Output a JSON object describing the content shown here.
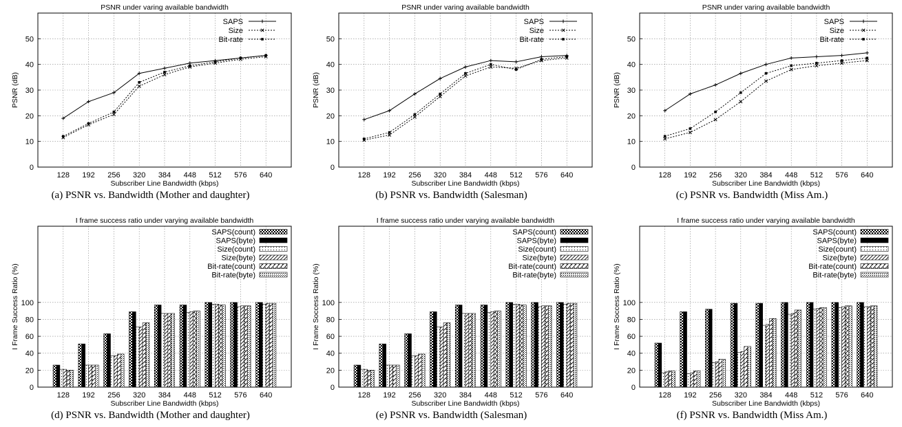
{
  "charts": [
    {
      "type": "line",
      "title": "PSNR under varing available bandwidth",
      "xlabel": "Subscriber Line Bandwidth (kbps)",
      "ylabel": "PSNR (dB)",
      "caption": "(a) PSNR vs. Bandwidth (Mother and daughter)",
      "categories": [
        "128",
        "192",
        "256",
        "320",
        "384",
        "448",
        "512",
        "576",
        "640"
      ],
      "yticks": [
        0,
        10,
        20,
        30,
        40,
        50
      ],
      "ylim": [
        0,
        60
      ],
      "legend_position": "top-right",
      "series": [
        {
          "name": "SAPS",
          "style": "solid",
          "marker": "plus",
          "values": [
            19,
            25.5,
            29,
            36.5,
            38.5,
            40.5,
            41.5,
            42.5,
            43.5
          ]
        },
        {
          "name": "Size",
          "style": "dotted",
          "marker": "x",
          "values": [
            11.5,
            16.5,
            20.5,
            31.5,
            36,
            39,
            40.5,
            42,
            43
          ]
        },
        {
          "name": "Bit-rate",
          "style": "dotted",
          "marker": "square",
          "values": [
            12,
            17,
            21.5,
            33,
            37,
            39.5,
            41,
            42.5,
            43.5
          ]
        }
      ]
    },
    {
      "type": "line",
      "title": "PSNR under varing available bandwidth",
      "xlabel": "Subscriber Line Bandwidth (kbps)",
      "ylabel": "PSNR (dB)",
      "caption": "(b) PSNR vs. Bandwidth (Salesman)",
      "categories": [
        "128",
        "192",
        "256",
        "320",
        "384",
        "448",
        "512",
        "576",
        "640"
      ],
      "yticks": [
        0,
        10,
        20,
        30,
        40,
        50
      ],
      "ylim": [
        0,
        60
      ],
      "legend_position": "top-right",
      "series": [
        {
          "name": "SAPS",
          "style": "solid",
          "marker": "plus",
          "values": [
            18.5,
            22,
            28.5,
            34.5,
            39,
            41.5,
            41,
            43,
            43.5
          ]
        },
        {
          "name": "Size",
          "style": "dotted",
          "marker": "x",
          "values": [
            10.5,
            12.5,
            19.5,
            27.5,
            35.5,
            39,
            38.5,
            41.5,
            42.5
          ]
        },
        {
          "name": "Bit-rate",
          "style": "dotted",
          "marker": "square",
          "values": [
            11,
            13.5,
            20.5,
            28.5,
            36.5,
            40,
            38,
            42,
            43
          ]
        }
      ]
    },
    {
      "type": "line",
      "title": "PSNR under varing available bandwidth",
      "xlabel": "Subscriber Line Bandwidth (kbps)",
      "ylabel": "PSNR (dB)",
      "caption": "(c) PSNR vs. Bandwidth (Miss Am.)",
      "categories": [
        "128",
        "192",
        "256",
        "320",
        "384",
        "448",
        "512",
        "576",
        "640"
      ],
      "yticks": [
        0,
        10,
        20,
        30,
        40,
        50
      ],
      "ylim": [
        0,
        60
      ],
      "legend_position": "top-right",
      "series": [
        {
          "name": "SAPS",
          "style": "solid",
          "marker": "plus",
          "values": [
            22,
            28.5,
            32,
            36.5,
            40,
            42.5,
            43,
            43.5,
            44.5
          ]
        },
        {
          "name": "Size",
          "style": "dotted",
          "marker": "x",
          "values": [
            11,
            13.5,
            18.5,
            25.5,
            33.5,
            38,
            39.5,
            40.5,
            41.5
          ]
        },
        {
          "name": "Bit-rate",
          "style": "dotted",
          "marker": "square",
          "values": [
            12,
            15,
            21.5,
            29,
            36.5,
            39.5,
            40.5,
            41.5,
            42.5
          ]
        }
      ]
    },
    {
      "type": "bar",
      "title": "I frame success ratio under varying available bandwidth",
      "xlabel": "Subscriber Line Bandwidth (kbps)",
      "ylabel": "I Frame Success Ratio (%)",
      "caption": "(d) PSNR vs. Bandwidth (Mother and daughter)",
      "categories": [
        "128",
        "192",
        "256",
        "320",
        "384",
        "448",
        "512",
        "576",
        "640"
      ],
      "yticks": [
        0,
        20,
        40,
        60,
        80,
        100
      ],
      "ylim": [
        0,
        190
      ],
      "legend_position": "top-right",
      "series": [
        {
          "name": "SAPS(count)",
          "pattern": "checker",
          "values": [
            26,
            51,
            63,
            89,
            97,
            97,
            100,
            100,
            100
          ]
        },
        {
          "name": "SAPS(byte)",
          "pattern": "solid",
          "values": [
            26,
            51,
            63,
            89,
            97,
            97,
            100,
            100,
            100
          ]
        },
        {
          "name": "Size(count)",
          "pattern": "dots",
          "values": [
            21,
            26,
            37,
            71,
            87,
            88,
            98,
            95,
            98
          ]
        },
        {
          "name": "Size(byte)",
          "pattern": "diag",
          "values": [
            21,
            26,
            37,
            71,
            87,
            89,
            98,
            96,
            99
          ]
        },
        {
          "name": "Bit-rate(count)",
          "pattern": "zigzag",
          "values": [
            20,
            26,
            39,
            76,
            87,
            90,
            97,
            96,
            99
          ]
        },
        {
          "name": "Bit-rate(byte)",
          "pattern": "fine",
          "values": [
            20,
            26,
            39,
            76,
            87,
            90,
            97,
            96,
            99
          ]
        }
      ]
    },
    {
      "type": "bar",
      "title": "I frame success ratio under varying available bandwidth",
      "xlabel": "Subscriber Line Bandwidth (kbps)",
      "ylabel": "I Frame Soccess Ratio (%)",
      "caption": "(e) PSNR vs. Bandwidth (Salesman)",
      "categories": [
        "128",
        "192",
        "256",
        "320",
        "384",
        "448",
        "512",
        "576",
        "640"
      ],
      "yticks": [
        0,
        20,
        40,
        60,
        80,
        100
      ],
      "ylim": [
        0,
        190
      ],
      "legend_position": "top-right",
      "series": [
        {
          "name": "SAPS(count)",
          "pattern": "checker",
          "values": [
            26,
            51,
            63,
            89,
            97,
            97,
            100,
            100,
            100
          ]
        },
        {
          "name": "SAPS(byte)",
          "pattern": "solid",
          "values": [
            26,
            51,
            63,
            89,
            97,
            97,
            100,
            100,
            100
          ]
        },
        {
          "name": "Size(count)",
          "pattern": "dots",
          "values": [
            21,
            26,
            37,
            71,
            87,
            88,
            98,
            95,
            98
          ]
        },
        {
          "name": "Size(byte)",
          "pattern": "diag",
          "values": [
            21,
            26,
            37,
            71,
            87,
            89,
            98,
            96,
            99
          ]
        },
        {
          "name": "Bit-rate(count)",
          "pattern": "zigzag",
          "values": [
            20,
            26,
            39,
            76,
            87,
            90,
            97,
            96,
            99
          ]
        },
        {
          "name": "Bit-rate(byte)",
          "pattern": "fine",
          "values": [
            20,
            26,
            39,
            76,
            87,
            90,
            97,
            96,
            99
          ]
        }
      ]
    },
    {
      "type": "bar",
      "title": "I frame success ratio under varying available bandwidth",
      "xlabel": "Subscriber Line Bandwidth (kbps)",
      "ylabel": "I Frame Soccess Ratio (%)",
      "caption": "(f) PSNR vs. Bandwidth (Miss Am.)",
      "categories": [
        "128",
        "192",
        "256",
        "320",
        "384",
        "448",
        "512",
        "576",
        "640"
      ],
      "yticks": [
        0,
        20,
        40,
        60,
        80,
        100
      ],
      "ylim": [
        0,
        190
      ],
      "legend_position": "top-right",
      "series": [
        {
          "name": "SAPS(count)",
          "pattern": "checker",
          "values": [
            52,
            89,
            92,
            99,
            99,
            100,
            100,
            100,
            100
          ]
        },
        {
          "name": "SAPS(byte)",
          "pattern": "solid",
          "values": [
            52,
            89,
            92,
            99,
            99,
            100,
            100,
            100,
            100
          ]
        },
        {
          "name": "Size(count)",
          "pattern": "dots",
          "values": [
            17,
            16,
            29,
            41,
            73,
            86,
            92,
            94,
            95
          ]
        },
        {
          "name": "Size(byte)",
          "pattern": "diag",
          "values": [
            18,
            17,
            30,
            42,
            74,
            87,
            93,
            95,
            95
          ]
        },
        {
          "name": "Bit-rate(count)",
          "pattern": "zigzag",
          "values": [
            19,
            19,
            33,
            48,
            81,
            91,
            94,
            96,
            96
          ]
        },
        {
          "name": "Bit-rate(byte)",
          "pattern": "fine",
          "values": [
            19,
            19,
            33,
            48,
            81,
            91,
            94,
            96,
            96
          ]
        }
      ]
    }
  ]
}
